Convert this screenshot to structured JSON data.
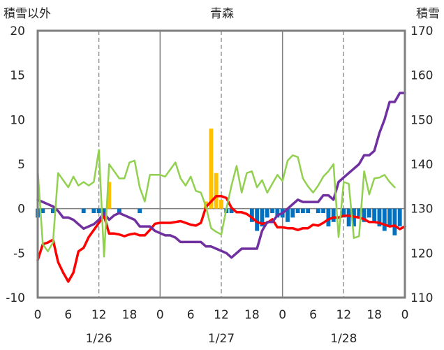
{
  "chart_data": {
    "type": "line",
    "title": "青森",
    "left_axis_label": "積雪以外",
    "right_axis_label": "積雪",
    "left_ylim": [
      -10,
      20
    ],
    "right_ylim": [
      110,
      170
    ],
    "left_ticks": [
      "20",
      "15",
      "10",
      "5",
      "0",
      "-5",
      "-10"
    ],
    "right_ticks": [
      "170",
      "160",
      "150",
      "140",
      "130",
      "120",
      "110"
    ],
    "x_range": [
      0,
      72
    ],
    "hour_tick_labels": [
      "0",
      "6",
      "12",
      "18",
      "0",
      "6",
      "12",
      "18",
      "0",
      "6",
      "12",
      "18",
      "0"
    ],
    "date_labels": [
      "1/26",
      "1/27",
      "1/28"
    ],
    "grid": "vertical dashed every 12 hours, solid at day boundaries",
    "colors": {
      "frame": "#7f7f7f",
      "grid": "#7f7f7f",
      "temperature": "#ff0000",
      "snow_depth": "#7030a0",
      "humidity_like_green": "#92d050",
      "precip_bar": "#ffc000",
      "snow_change_bar": "#0070c0"
    },
    "series": [
      {
        "kind": "line",
        "axis": "left",
        "color": "#ff0000",
        "x": [
          0,
          1,
          2,
          3,
          4,
          5,
          6,
          7,
          8,
          9,
          10,
          11,
          12,
          13,
          14,
          15,
          16,
          17,
          18,
          19,
          20,
          21,
          22,
          23,
          24,
          25,
          26,
          27,
          28,
          29,
          30,
          31,
          32,
          33,
          34,
          35,
          36,
          37,
          38,
          39,
          40,
          41,
          42,
          43,
          44,
          45,
          46,
          47,
          48,
          49,
          50,
          51,
          52,
          53,
          54,
          55,
          56,
          57,
          58,
          59,
          60,
          61,
          62,
          63,
          64,
          65,
          66,
          67,
          68,
          69,
          70,
          71,
          72
        ],
        "y": [
          -5.8,
          -4,
          -3.8,
          -3.5,
          -6,
          -7.2,
          -8.2,
          -7.2,
          -4.8,
          -4.4,
          -3.2,
          -2.4,
          -1.6,
          -0.8,
          -2.8,
          -2.8,
          -2.9,
          -3.1,
          -2.9,
          -2.8,
          -3,
          -3,
          -2.4,
          -1.7,
          -1.6,
          -1.6,
          -1.6,
          -1.5,
          -1.4,
          -1.6,
          -1.8,
          -1.9,
          -1.6,
          0.2,
          0.8,
          1.4,
          1.4,
          1.2,
          0.1,
          -0.4,
          -0.4,
          -0.6,
          -1,
          -1.5,
          -1.7,
          -1.6,
          -1.2,
          -2.1,
          -2.1,
          -2.2,
          -2.2,
          -2.4,
          -2.2,
          -2.2,
          -1.8,
          -1.9,
          -1.6,
          -1.2,
          -1,
          -1,
          -0.8,
          -0.8,
          -0.9,
          -1,
          -1.2,
          -1.5,
          -1.5,
          -1.6,
          -1.8,
          -2,
          -1.9,
          -2.3,
          -2
        ]
      },
      {
        "kind": "line",
        "axis": "right",
        "color": "#7030a0",
        "x": [
          0,
          1,
          2,
          3,
          4,
          5,
          6,
          7,
          8,
          9,
          10,
          11,
          12,
          13,
          14,
          15,
          16,
          17,
          18,
          19,
          20,
          21,
          22,
          23,
          24,
          25,
          26,
          27,
          28,
          29,
          30,
          31,
          32,
          33,
          34,
          35,
          36,
          37,
          38,
          39,
          40,
          41,
          42,
          43,
          44,
          45,
          46,
          47,
          48,
          49,
          50,
          51,
          52,
          53,
          54,
          55,
          56,
          57,
          58,
          59,
          60,
          61,
          62,
          63,
          64,
          65,
          66,
          67,
          68,
          69,
          70,
          71,
          72
        ],
        "y": [
          132,
          131.5,
          131,
          130.5,
          129.5,
          128,
          128,
          127.5,
          126.5,
          125.5,
          126,
          126.5,
          127.5,
          129,
          127.5,
          128.5,
          129,
          128.5,
          128,
          127.5,
          126,
          126,
          126,
          125,
          124.5,
          124,
          124,
          123.5,
          122.5,
          122.5,
          122.5,
          122.5,
          122.5,
          121.5,
          121.5,
          121,
          120.5,
          120,
          119,
          120,
          121,
          121,
          121,
          121,
          125,
          127,
          127,
          128.5,
          129,
          130,
          131,
          132,
          131.5,
          131.5,
          131.5,
          131.5,
          133,
          133,
          132,
          136,
          137,
          138,
          139,
          140,
          142,
          142,
          143,
          147,
          150,
          154,
          154,
          156,
          156
        ]
      },
      {
        "kind": "line",
        "axis": "left",
        "color": "#92d050",
        "x": [
          0,
          1,
          2,
          3,
          4,
          5,
          6,
          7,
          8,
          9,
          10,
          11,
          12,
          13,
          14,
          15,
          16,
          17,
          18,
          19,
          20,
          21,
          22,
          23,
          24,
          25,
          26,
          27,
          28,
          29,
          30,
          31,
          32,
          33,
          34,
          35,
          36,
          37,
          38,
          39,
          40,
          41,
          42,
          43,
          44,
          45,
          46,
          47,
          48,
          49,
          50,
          51,
          52,
          53,
          54,
          55,
          56,
          57,
          58,
          59,
          60,
          61,
          62,
          63,
          64,
          65,
          66,
          67,
          68,
          69,
          70,
          71,
          72
        ],
        "y": [
          4.4,
          -4,
          -4.8,
          -3.8,
          4,
          3.2,
          2.4,
          3.6,
          2.6,
          3,
          2.6,
          3,
          6.6,
          -5.4,
          5,
          4.2,
          3.4,
          3.4,
          5.2,
          5.4,
          2.4,
          0.8,
          3.8,
          3.8,
          3.8,
          3.6,
          4.4,
          5.2,
          3.4,
          2.6,
          3.6,
          2,
          1.8,
          0.2,
          -2.2,
          -2.6,
          -2.9,
          0,
          2.6,
          4.8,
          1.8,
          4,
          4.2,
          2.4,
          3.2,
          1.8,
          2.8,
          3.8,
          3.1,
          5.4,
          6,
          5.8,
          3.4,
          2.5,
          1.8,
          2.6,
          3.6,
          4.2,
          5,
          -3.2,
          3,
          2.8,
          -3.3,
          -3.1,
          4.2,
          1.6,
          3.4,
          3.5,
          3.8,
          3,
          2.4,
          null,
          null
        ]
      },
      {
        "kind": "bar",
        "axis": "left",
        "color": "#ffc000",
        "x": [
          14,
          33,
          34,
          35,
          36
        ],
        "y": [
          3,
          0.8,
          9,
          4,
          1
        ]
      },
      {
        "kind": "bar",
        "axis": "left",
        "color": "#0070c0",
        "x": [
          0,
          1,
          3,
          9,
          11,
          12,
          13,
          16,
          20,
          37,
          38,
          42,
          43,
          44,
          45,
          46,
          47,
          48,
          49,
          50,
          51,
          52,
          53,
          55,
          56,
          57,
          58,
          60,
          61,
          62,
          63,
          64,
          65,
          66,
          67,
          68,
          69,
          70,
          71
        ],
        "y": [
          -1,
          -0.5,
          -0.5,
          -0.5,
          -0.5,
          -0.5,
          -0.5,
          -0.5,
          -0.5,
          -0.5,
          -0.5,
          -1.5,
          -2.5,
          -2,
          -1,
          -0.5,
          -1,
          -1,
          -1.5,
          -1,
          -0.5,
          -0.5,
          -0.5,
          -0.5,
          -0.5,
          -2,
          -1.5,
          -1,
          -2,
          -2,
          -1,
          -1.5,
          -1,
          -1.5,
          -2,
          -2.5,
          -2,
          -3,
          -2
        ]
      }
    ]
  }
}
